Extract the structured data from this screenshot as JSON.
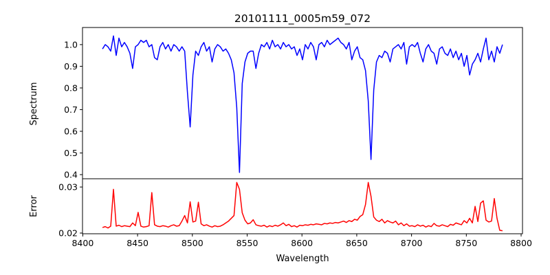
{
  "chart_data": [
    {
      "type": "line",
      "title": "20101111_0005m59_072",
      "xlabel": "",
      "ylabel": "Spectrum",
      "xlim": [
        8399.75,
        8801.25
      ],
      "ylim": [
        0.381,
        1.079
      ],
      "yticks": [
        "0.4",
        "0.5",
        "0.6",
        "0.7",
        "0.8",
        "0.9",
        "1.0"
      ],
      "yticks_values": [
        0.4,
        0.5,
        0.6,
        0.7,
        0.8,
        0.9,
        1.0
      ],
      "grid": false,
      "color": "#0000ff",
      "series": [
        {
          "name": "Spectrum",
          "x_start": 8418,
          "x_step": 2.5,
          "values": [
            0.98,
            1.0,
            0.99,
            0.97,
            1.04,
            0.95,
            1.03,
            0.99,
            1.01,
            0.99,
            0.96,
            0.89,
            0.99,
            1.0,
            1.02,
            1.01,
            1.02,
            0.99,
            1.0,
            0.94,
            0.93,
            0.99,
            1.01,
            0.98,
            1.0,
            0.97,
            1.0,
            0.99,
            0.97,
            0.99,
            0.97,
            0.78,
            0.62,
            0.86,
            0.97,
            0.95,
            0.99,
            1.01,
            0.97,
            0.99,
            0.92,
            0.98,
            1.0,
            0.99,
            0.97,
            0.98,
            0.96,
            0.93,
            0.87,
            0.71,
            0.41,
            0.82,
            0.92,
            0.96,
            0.97,
            0.97,
            0.89,
            0.96,
            1.0,
            0.99,
            1.01,
            0.98,
            1.02,
            0.99,
            1.0,
            0.98,
            1.01,
            0.99,
            1.0,
            0.98,
            0.99,
            0.95,
            0.98,
            0.93,
            1.0,
            0.98,
            1.01,
            0.99,
            0.93,
            1.0,
            1.01,
            0.99,
            1.02,
            1.0,
            1.01,
            1.02,
            1.03,
            1.01,
            1.0,
            0.98,
            1.01,
            0.93,
            0.97,
            0.99,
            0.94,
            0.93,
            0.88,
            0.74,
            0.47,
            0.79,
            0.92,
            0.95,
            0.94,
            0.97,
            0.96,
            0.92,
            0.98,
            0.99,
            1.0,
            0.98,
            1.01,
            0.91,
            0.99,
            1.0,
            0.99,
            1.01,
            0.96,
            0.92,
            0.98,
            1.0,
            0.97,
            0.96,
            0.91,
            0.98,
            0.99,
            0.96,
            0.95,
            0.98,
            0.94,
            0.97,
            0.93,
            0.96,
            0.9,
            0.95,
            0.86,
            0.91,
            0.93,
            0.96,
            0.92,
            0.98,
            1.03,
            0.93,
            0.97,
            0.92,
            0.99,
            0.96,
            1.0
          ]
        }
      ]
    },
    {
      "type": "line",
      "xlabel": "Wavelength",
      "ylabel": "Error",
      "xlim": [
        8399.75,
        8801.25
      ],
      "ylim": [
        0.01985,
        0.0318
      ],
      "xticks": [
        "8400",
        "8450",
        "8500",
        "8550",
        "8600",
        "8650",
        "8700",
        "8750",
        "8800"
      ],
      "xticks_values": [
        8400,
        8450,
        8500,
        8550,
        8600,
        8650,
        8700,
        8750,
        8800
      ],
      "yticks": [
        "0.02",
        "0.03"
      ],
      "yticks_values": [
        0.02,
        0.03
      ],
      "grid": false,
      "color": "#ff0000",
      "series": [
        {
          "name": "Error",
          "x_start": 8418,
          "x_step": 2.5,
          "values": [
            0.0212,
            0.0214,
            0.0211,
            0.0215,
            0.0295,
            0.0215,
            0.0217,
            0.0214,
            0.0216,
            0.0215,
            0.0214,
            0.0222,
            0.0216,
            0.0245,
            0.0215,
            0.0213,
            0.0214,
            0.0216,
            0.0288,
            0.0218,
            0.0215,
            0.0214,
            0.0216,
            0.0215,
            0.0213,
            0.0216,
            0.0218,
            0.0215,
            0.0216,
            0.0226,
            0.0238,
            0.0222,
            0.0268,
            0.0224,
            0.0226,
            0.0267,
            0.022,
            0.0216,
            0.0218,
            0.0215,
            0.0213,
            0.0216,
            0.0214,
            0.0215,
            0.0218,
            0.0222,
            0.0226,
            0.0232,
            0.0238,
            0.031,
            0.0295,
            0.0244,
            0.0228,
            0.022,
            0.0222,
            0.0229,
            0.0218,
            0.0216,
            0.0215,
            0.0217,
            0.0213,
            0.0216,
            0.0214,
            0.0217,
            0.0215,
            0.0218,
            0.0222,
            0.0216,
            0.0219,
            0.0214,
            0.0216,
            0.0213,
            0.0217,
            0.0216,
            0.0218,
            0.0217,
            0.0219,
            0.0218,
            0.022,
            0.0219,
            0.0218,
            0.0221,
            0.022,
            0.0222,
            0.0221,
            0.0223,
            0.0222,
            0.0224,
            0.0226,
            0.0223,
            0.0227,
            0.0225,
            0.023,
            0.0228,
            0.0236,
            0.024,
            0.0262,
            0.031,
            0.028,
            0.0235,
            0.0228,
            0.0225,
            0.023,
            0.0222,
            0.0227,
            0.0224,
            0.0222,
            0.0226,
            0.0218,
            0.0222,
            0.0216,
            0.022,
            0.0215,
            0.0216,
            0.0214,
            0.0218,
            0.0215,
            0.0217,
            0.0213,
            0.0216,
            0.0214,
            0.0221,
            0.0216,
            0.0215,
            0.0218,
            0.0216,
            0.0214,
            0.0219,
            0.0217,
            0.0222,
            0.022,
            0.0218,
            0.0227,
            0.0222,
            0.0232,
            0.0222,
            0.0258,
            0.0225,
            0.0265,
            0.027,
            0.0228,
            0.0224,
            0.0226,
            0.0275,
            0.0232,
            0.0206,
            0.0205
          ]
        }
      ]
    }
  ]
}
